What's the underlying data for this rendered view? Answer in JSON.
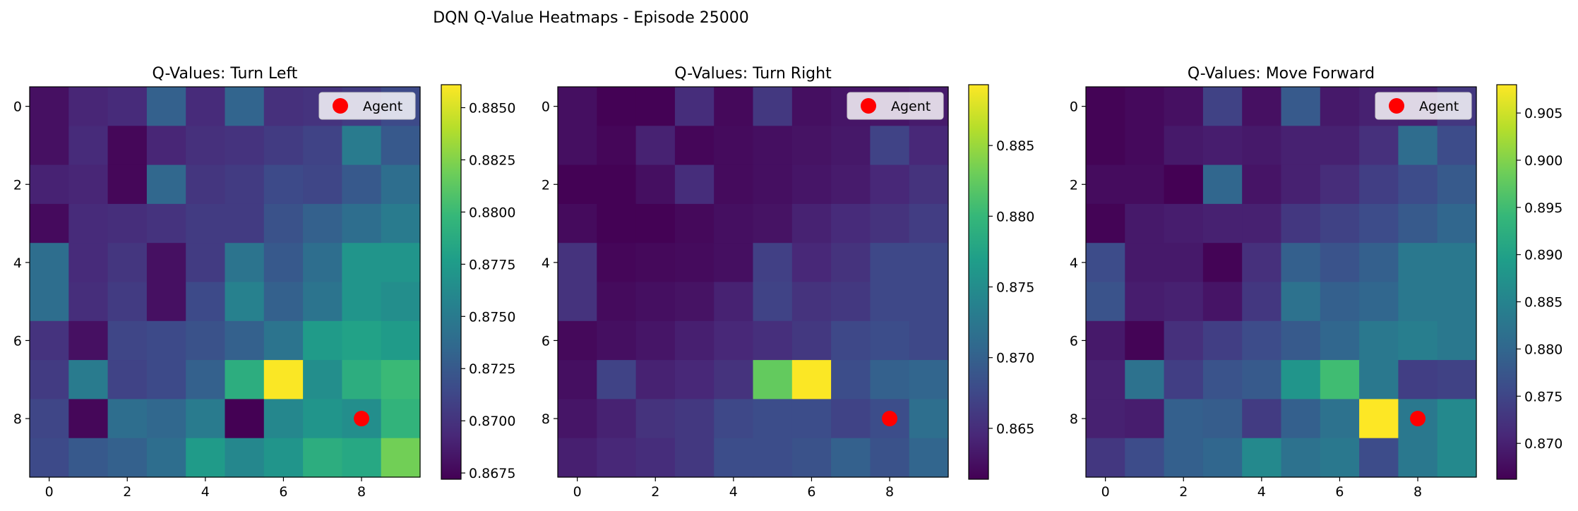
{
  "figure": {
    "title": "DQN Q-Value Heatmaps - Episode 25000"
  },
  "colormap": [
    "#440154",
    "#482878",
    "#3e4989",
    "#31688e",
    "#26828e",
    "#1f9e89",
    "#35b779",
    "#6ece58",
    "#b5de2b",
    "#fde725"
  ],
  "chart_data": [
    {
      "type": "heatmap",
      "title": "Q-Values: Turn Left",
      "xticks": [
        0,
        2,
        4,
        6,
        8
      ],
      "yticks": [
        0,
        2,
        4,
        6,
        8
      ],
      "vmin": 0.8672,
      "vmax": 0.8861,
      "colorbar_ticks": [
        "0.8675",
        "0.8700",
        "0.8725",
        "0.8750",
        "0.8775",
        "0.8800",
        "0.8825",
        "0.8850"
      ],
      "legend": {
        "label": "Agent",
        "position": "upper right",
        "color": "#ff0000"
      },
      "agent": {
        "x": 8,
        "y": 8
      },
      "values": [
        [
          0.868,
          0.8692,
          0.8695,
          0.873,
          0.8695,
          0.8733,
          0.8698,
          0.87,
          0.8705,
          0.8715
        ],
        [
          0.868,
          0.8695,
          0.8675,
          0.8692,
          0.8698,
          0.87,
          0.8705,
          0.871,
          0.875,
          0.8725
        ],
        [
          0.869,
          0.8692,
          0.8675,
          0.8735,
          0.8702,
          0.8705,
          0.8715,
          0.8712,
          0.8725,
          0.874
        ],
        [
          0.8677,
          0.8695,
          0.8697,
          0.87,
          0.8705,
          0.8705,
          0.872,
          0.873,
          0.874,
          0.875
        ],
        [
          0.874,
          0.8695,
          0.8702,
          0.868,
          0.8705,
          0.8745,
          0.8725,
          0.874,
          0.877,
          0.877
        ],
        [
          0.874,
          0.8697,
          0.8705,
          0.868,
          0.8715,
          0.8755,
          0.873,
          0.8745,
          0.877,
          0.8765
        ],
        [
          0.87,
          0.868,
          0.8712,
          0.8715,
          0.872,
          0.873,
          0.8745,
          0.8775,
          0.878,
          0.8775
        ],
        [
          0.8705,
          0.875,
          0.871,
          0.8715,
          0.873,
          0.879,
          0.886,
          0.8765,
          0.879,
          0.88
        ],
        [
          0.8712,
          0.8675,
          0.874,
          0.8735,
          0.875,
          0.8672,
          0.876,
          0.877,
          0.8765,
          0.8795
        ],
        [
          0.8715,
          0.8725,
          0.873,
          0.874,
          0.8775,
          0.876,
          0.877,
          0.879,
          0.8785,
          0.882
        ]
      ]
    },
    {
      "type": "heatmap",
      "title": "Q-Values: Turn Right",
      "xticks": [
        0,
        2,
        4,
        6,
        8
      ],
      "yticks": [
        0,
        2,
        4,
        6,
        8
      ],
      "vmin": 0.8614,
      "vmax": 0.8893,
      "colorbar_ticks": [
        "0.865",
        "0.870",
        "0.875",
        "0.880",
        "0.885"
      ],
      "legend": {
        "label": "Agent",
        "position": "upper right",
        "color": "#ff0000"
      },
      "agent": {
        "x": 8,
        "y": 8
      },
      "values": [
        [
          0.8625,
          0.8615,
          0.8615,
          0.865,
          0.862,
          0.866,
          0.8625,
          0.863,
          0.863,
          0.8635
        ],
        [
          0.8625,
          0.8618,
          0.864,
          0.8618,
          0.8622,
          0.8625,
          0.8628,
          0.8632,
          0.867,
          0.8645
        ],
        [
          0.8615,
          0.8615,
          0.8625,
          0.865,
          0.8622,
          0.8625,
          0.863,
          0.8635,
          0.8645,
          0.8655
        ],
        [
          0.8622,
          0.8615,
          0.8615,
          0.862,
          0.8625,
          0.8628,
          0.864,
          0.8648,
          0.8655,
          0.8665
        ],
        [
          0.8655,
          0.8618,
          0.862,
          0.8622,
          0.8625,
          0.8668,
          0.8645,
          0.8655,
          0.8675,
          0.8675
        ],
        [
          0.8655,
          0.8622,
          0.8625,
          0.8628,
          0.864,
          0.867,
          0.8655,
          0.866,
          0.8675,
          0.8675
        ],
        [
          0.862,
          0.8625,
          0.863,
          0.8638,
          0.8645,
          0.8652,
          0.866,
          0.8675,
          0.868,
          0.8675
        ],
        [
          0.8625,
          0.867,
          0.864,
          0.8645,
          0.8655,
          0.8825,
          0.8892,
          0.868,
          0.87,
          0.8705
        ],
        [
          0.863,
          0.864,
          0.8655,
          0.866,
          0.8675,
          0.868,
          0.868,
          0.867,
          0.868,
          0.8715
        ],
        [
          0.8638,
          0.8645,
          0.865,
          0.866,
          0.868,
          0.868,
          0.8685,
          0.87,
          0.8685,
          0.8705
        ]
      ]
    },
    {
      "type": "heatmap",
      "title": "Q-Values: Move Forward",
      "xticks": [
        0,
        2,
        4,
        6,
        8
      ],
      "yticks": [
        0,
        2,
        4,
        6,
        8
      ],
      "vmin": 0.8662,
      "vmax": 0.908,
      "colorbar_ticks": [
        "0.870",
        "0.875",
        "0.880",
        "0.885",
        "0.890",
        "0.895",
        "0.900",
        "0.905"
      ],
      "legend": {
        "label": "Agent",
        "position": "upper right",
        "color": "#ff0000"
      },
      "agent": {
        "x": 8,
        "y": 8
      },
      "values": [
        [
          0.8665,
          0.8672,
          0.868,
          0.8745,
          0.868,
          0.878,
          0.869,
          0.87,
          0.87,
          0.873
        ],
        [
          0.8665,
          0.8672,
          0.869,
          0.8695,
          0.869,
          0.87,
          0.87,
          0.872,
          0.881,
          0.876
        ],
        [
          0.8675,
          0.8675,
          0.8662,
          0.88,
          0.8685,
          0.87,
          0.8715,
          0.874,
          0.876,
          0.878
        ],
        [
          0.8665,
          0.869,
          0.8695,
          0.87,
          0.87,
          0.873,
          0.8745,
          0.876,
          0.878,
          0.88
        ],
        [
          0.876,
          0.869,
          0.869,
          0.8665,
          0.872,
          0.879,
          0.877,
          0.879,
          0.883,
          0.883
        ],
        [
          0.877,
          0.8695,
          0.87,
          0.8685,
          0.873,
          0.882,
          0.879,
          0.88,
          0.883,
          0.883
        ],
        [
          0.869,
          0.8665,
          0.872,
          0.874,
          0.876,
          0.878,
          0.88,
          0.883,
          0.884,
          0.883
        ],
        [
          0.87,
          0.882,
          0.874,
          0.877,
          0.878,
          0.888,
          0.895,
          0.883,
          0.874,
          0.8745
        ],
        [
          0.87,
          0.8695,
          0.879,
          0.8785,
          0.8735,
          0.879,
          0.882,
          0.908,
          0.883,
          0.886
        ],
        [
          0.873,
          0.876,
          0.879,
          0.88,
          0.886,
          0.882,
          0.883,
          0.876,
          0.883,
          0.886
        ]
      ]
    }
  ]
}
